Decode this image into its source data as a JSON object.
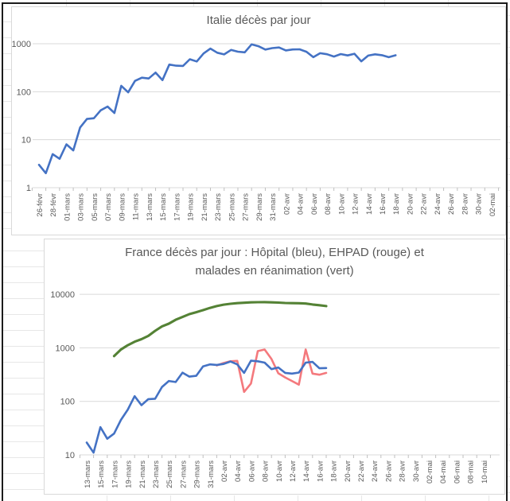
{
  "colors": {
    "text_gray": "#595959",
    "gridline": "#d9d9d9",
    "axis_tick": "#bfbfbf",
    "frame_black": "#1c1c1c",
    "cell_grid": "#e7e7e7",
    "background": "#ffffff",
    "blue": "#4472c4",
    "red": "#f4797d",
    "green": "#548235"
  },
  "chart_data": [
    {
      "type": "line",
      "title": "Italie décès par jour",
      "y_scale": "log",
      "y_ticks": [
        1,
        10,
        100,
        1000
      ],
      "ylim": [
        1,
        1000
      ],
      "grid": "horizontal",
      "legend": "none",
      "x_label_every_days": 2,
      "x_labels": [
        "26-févr",
        "28-févr",
        "01-mars",
        "03-mars",
        "05-mars",
        "07-mars",
        "09-mars",
        "11-mars",
        "13-mars",
        "15-mars",
        "17-mars",
        "19-mars",
        "21-mars",
        "23-mars",
        "25-mars",
        "27-mars",
        "29-mars",
        "31-mars",
        "02-avr",
        "04-avr",
        "06-avr",
        "08-avr",
        "10-avr",
        "12-avr",
        "14-avr",
        "16-avr",
        "18-avr",
        "20-avr",
        "22-avr",
        "24-avr",
        "26-avr",
        "28-avr",
        "30-avr",
        "02-mai"
      ],
      "series": [
        {
          "name": "Italie décès par jour",
          "color": "#4472c4",
          "start_date": "26-févr",
          "start_index": 0,
          "values": [
            3,
            2,
            5,
            4,
            8,
            6,
            18,
            27,
            28,
            41,
            49,
            36,
            133,
            97,
            168,
            196,
            189,
            250,
            175,
            368,
            349,
            345,
            475,
            427,
            627,
            793,
            651,
            601,
            743,
            683,
            662,
            969,
            889,
            756,
            812,
            837,
            727,
            760,
            766,
            681,
            525,
            636,
            604,
            542,
            610,
            570,
            619,
            431,
            566,
            602,
            578,
            525,
            575
          ]
        }
      ]
    },
    {
      "type": "line",
      "title": "France décès par jour : Hôpital (bleu), EHPAD (rouge) et malades en réanimation (vert)",
      "title_lines": [
        "France décès par jour : Hôpital  (bleu),  EHPAD (rouge) et",
        "malades en réanimation (vert)"
      ],
      "y_scale": "log",
      "y_ticks": [
        10,
        100,
        1000,
        10000
      ],
      "ylim": [
        10,
        10000
      ],
      "grid": "horizontal",
      "legend": "none",
      "x_label_every_days": 2,
      "x_labels": [
        "13-mars",
        "15-mars",
        "17-mars",
        "19-mars",
        "21-mars",
        "23-mars",
        "25-mars",
        "27-mars",
        "29-mars",
        "31-mars",
        "02-avr",
        "04-avr",
        "06-avr",
        "08-avr",
        "10-avr",
        "12-avr",
        "14-avr",
        "16-avr",
        "18-avr",
        "20-avr",
        "22-avr",
        "24-avr",
        "26-avr",
        "28-avr",
        "30-avr",
        "02-mai",
        "04-mai",
        "06-mai",
        "08-mai",
        "10-mai"
      ],
      "series": [
        {
          "name": "Hôpital",
          "color": "#4472c4",
          "start_date": "13-mars",
          "start_index": 0,
          "values": [
            17,
            11,
            33,
            20,
            25,
            45,
            70,
            125,
            85,
            110,
            112,
            186,
            240,
            230,
            344,
            290,
            300,
            450,
            490,
            480,
            500,
            555,
            490,
            340,
            575,
            560,
            530,
            400,
            430,
            340,
            330,
            345,
            530,
            545,
            415,
            420
          ]
        },
        {
          "name": "EHPAD",
          "color": "#f4797d",
          "start_date": "01-avr",
          "start_index": 19,
          "values": [
            470,
            520,
            560,
            570,
            150,
            215,
            870,
            930,
            620,
            335,
            280,
            240,
            205,
            930,
            330,
            315,
            340
          ]
        },
        {
          "name": "malades en réanimation",
          "color": "#548235",
          "start_date": "17-mars",
          "start_index": 4,
          "values": [
            700,
            930,
            1120,
            1300,
            1450,
            1670,
            2080,
            2520,
            2830,
            3350,
            3770,
            4270,
            4630,
            5060,
            5570,
            6020,
            6400,
            6660,
            6840,
            6950,
            7070,
            7130,
            7150,
            7070,
            7000,
            6880,
            6850,
            6820,
            6730,
            6460,
            6250,
            6030
          ]
        }
      ]
    }
  ]
}
